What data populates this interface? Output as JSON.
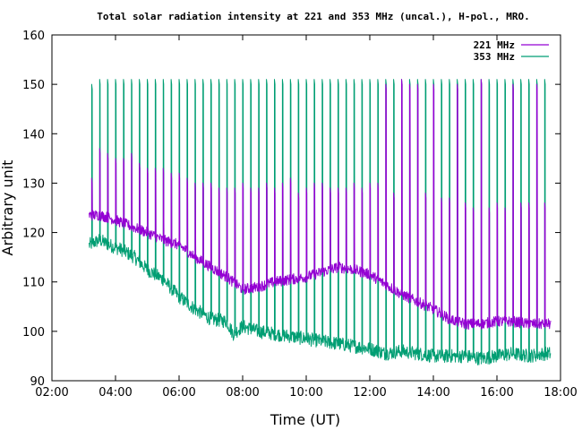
{
  "chart_data": {
    "type": "line",
    "title": "Total solar radiation intensity at 221 and 353 MHz (uncal.), H-pol., MRO.",
    "xlabel": "Time (UT)",
    "ylabel": "Arbitrary unit",
    "x_unit": "hours UT",
    "xlim": [
      2.0,
      18.0
    ],
    "ylim": [
      90,
      160
    ],
    "xticks": [
      2,
      4,
      6,
      8,
      10,
      12,
      14,
      16,
      18
    ],
    "xtick_labels": [
      "02:00",
      "04:00",
      "06:00",
      "08:00",
      "10:00",
      "12:00",
      "14:00",
      "16:00",
      "18:00"
    ],
    "yticks": [
      90,
      100,
      110,
      120,
      130,
      140,
      150,
      160
    ],
    "ytick_labels": [
      "90",
      "100",
      "110",
      "120",
      "130",
      "140",
      "150",
      "160"
    ],
    "grid": false,
    "legend_position": "top-right",
    "calibration_interval_hours": 0.25,
    "series": [
      {
        "name": "221 MHz",
        "color": "#9400d3",
        "baseline": {
          "x": [
            3.17,
            3.5,
            3.8,
            4.2,
            4.6,
            5.0,
            5.5,
            6.0,
            6.5,
            7.0,
            7.5,
            8.0,
            8.5,
            9.0,
            9.5,
            10.0,
            10.5,
            11.0,
            11.5,
            12.0,
            12.5,
            13.0,
            13.5,
            14.0,
            14.5,
            15.0,
            15.5,
            16.0,
            16.5,
            17.0,
            17.5,
            17.7
          ],
          "y": [
            123.5,
            123.5,
            123.0,
            122.0,
            121.0,
            120.0,
            118.5,
            117.5,
            115.0,
            113.0,
            111.0,
            108.5,
            109.0,
            110.0,
            110.5,
            111.0,
            112.0,
            113.0,
            112.5,
            111.5,
            109.5,
            107.5,
            106.0,
            104.5,
            102.5,
            101.5,
            101.5,
            102.0,
            102.0,
            101.5,
            101.5,
            101.5
          ]
        },
        "spike_peaks": {
          "x": [
            3.25,
            3.5,
            3.75,
            4.0,
            4.25,
            4.5,
            4.75,
            5.0,
            5.25,
            5.5,
            5.75,
            6.0,
            6.25,
            6.5,
            6.75,
            7.0,
            7.25,
            7.5,
            7.75,
            8.0,
            8.25,
            8.5,
            8.75,
            9.0,
            9.25,
            9.5,
            9.75,
            10.0,
            10.25,
            10.5,
            10.75,
            11.0,
            11.25,
            11.5,
            11.75,
            12.0,
            12.25,
            12.5,
            12.75,
            13.0,
            13.25,
            13.5,
            13.75,
            14.0,
            14.25,
            14.5,
            14.75,
            15.0,
            15.25,
            15.5,
            15.75,
            16.0,
            16.25,
            16.5,
            16.75,
            17.0,
            17.25,
            17.5
          ],
          "y": [
            131,
            137,
            136,
            135,
            135,
            136,
            134,
            133,
            133,
            133,
            132,
            132,
            131,
            130,
            130,
            130,
            129,
            129,
            129,
            130,
            129,
            129,
            130,
            129,
            130,
            131,
            128,
            129,
            130,
            130,
            129,
            129,
            129,
            130,
            129,
            130,
            130,
            150,
            128,
            151,
            150,
            150,
            128,
            150,
            127,
            127,
            150,
            126,
            125,
            151,
            125,
            126,
            125,
            150,
            126,
            126,
            150,
            126
          ]
        }
      },
      {
        "name": "353 MHz",
        "color": "#009e73",
        "baseline": {
          "x": [
            3.17,
            3.5,
            3.8,
            4.2,
            4.6,
            5.0,
            5.5,
            6.0,
            6.5,
            7.0,
            7.5,
            7.7,
            8.0,
            8.5,
            9.0,
            9.5,
            10.0,
            10.5,
            11.0,
            11.5,
            12.0,
            12.5,
            13.0,
            13.5,
            14.0,
            14.5,
            15.0,
            15.5,
            16.0,
            16.5,
            17.0,
            17.5,
            17.7
          ],
          "y": [
            117.5,
            118.5,
            117.5,
            116.5,
            115.0,
            112.5,
            110.5,
            107.0,
            104.5,
            102.5,
            102.0,
            99.5,
            101.0,
            100.0,
            99.5,
            99.0,
            98.5,
            98.0,
            97.5,
            97.0,
            96.5,
            95.5,
            96.0,
            95.5,
            95.0,
            95.0,
            95.0,
            94.5,
            95.0,
            95.5,
            95.0,
            95.5,
            95.5
          ]
        },
        "spike_peaks": {
          "x": [
            3.25,
            3.5,
            3.75,
            4.0,
            4.25,
            4.5,
            4.75,
            5.0,
            5.25,
            5.5,
            5.75,
            6.0,
            6.25,
            6.5,
            6.75,
            7.0,
            7.25,
            7.5,
            7.75,
            8.0,
            8.25,
            8.5,
            8.75,
            9.0,
            9.25,
            9.5,
            9.75,
            10.0,
            10.25,
            10.5,
            10.75,
            11.0,
            11.25,
            11.5,
            11.75,
            12.0,
            12.25,
            12.5,
            12.75,
            13.0,
            13.25,
            13.5,
            13.75,
            14.0,
            14.25,
            14.5,
            14.75,
            15.0,
            15.25,
            15.5,
            15.75,
            16.0,
            16.25,
            16.5,
            16.75,
            17.0,
            17.25,
            17.5
          ],
          "y": [
            150,
            151,
            151,
            151,
            151,
            151,
            151,
            151,
            151,
            151,
            151,
            151,
            151,
            151,
            151,
            151,
            151,
            151,
            151,
            151,
            151,
            151,
            151,
            151,
            151,
            151,
            151,
            151,
            151,
            151,
            151,
            151,
            151,
            151,
            151,
            151,
            151,
            151,
            151,
            151,
            151,
            151,
            151,
            151,
            151,
            151,
            151,
            151,
            151,
            151,
            151,
            151,
            151,
            151,
            151,
            151,
            151,
            151
          ]
        }
      }
    ]
  }
}
